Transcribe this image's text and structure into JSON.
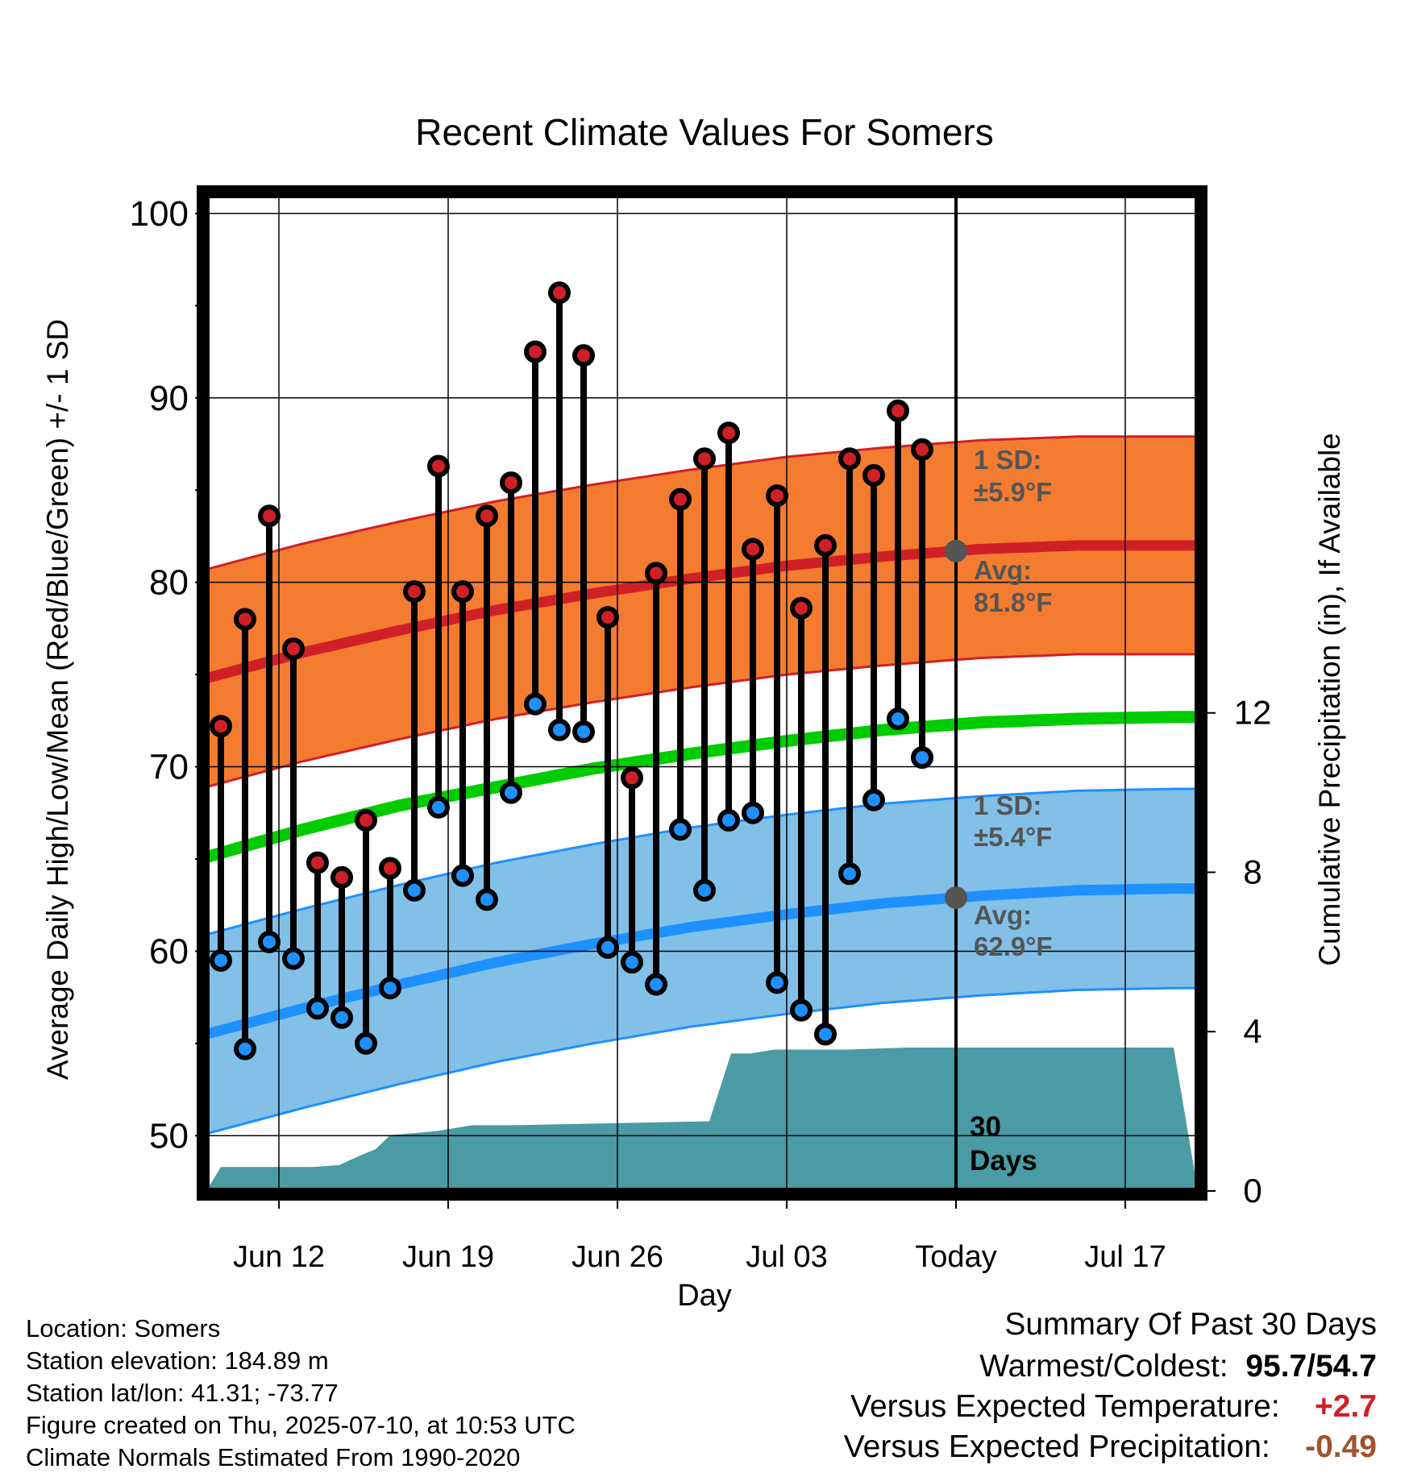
{
  "chart_data": {
    "type": "line",
    "title": "Recent Climate Values For Somers",
    "xlabel": "Day",
    "ylabel": "Average Daily High/Low/Mean (Red/Blue/Green) +/- 1 SD",
    "y2label": "Cumulative Precipitation (in), If Available",
    "x_ticks": [
      "Jun 12",
      "Jun 19",
      "Jun 26",
      "Jul 03",
      "Today",
      "Jul 17"
    ],
    "ylim": [
      47,
      101
    ],
    "y_ticks": [
      50,
      60,
      70,
      80,
      90,
      100
    ],
    "y2lim": [
      0,
      25
    ],
    "y2_ticks": [
      0,
      4,
      8,
      12
    ],
    "grid": true,
    "today_label": "30 Days",
    "high_band": {
      "sd_label": "1 SD:",
      "sd_value": "±5.9°F",
      "avg_label": "Avg:",
      "avg_value": "81.8°F"
    },
    "low_band": {
      "sd_label": "1 SD:",
      "sd_value": "±5.4°F",
      "avg_label": "Avg:",
      "avg_value": "62.9°F"
    },
    "daily": {
      "days": [
        "Jun 10",
        "Jun 11",
        "Jun 12",
        "Jun 13",
        "Jun 14",
        "Jun 15",
        "Jun 16",
        "Jun 17",
        "Jun 18",
        "Jun 19",
        "Jun 20",
        "Jun 21",
        "Jun 22",
        "Jun 23",
        "Jun 24",
        "Jun 25",
        "Jun 26",
        "Jun 27",
        "Jun 28",
        "Jun 29",
        "Jun 30",
        "Jul 01",
        "Jul 02",
        "Jul 03",
        "Jul 04",
        "Jul 05",
        "Jul 06",
        "Jul 07",
        "Jul 08",
        "Jul 09"
      ],
      "highs": [
        72.2,
        78.0,
        83.6,
        76.4,
        64.8,
        64.0,
        67.1,
        64.5,
        79.5,
        86.3,
        79.5,
        83.6,
        85.4,
        92.5,
        95.7,
        92.3,
        78.1,
        69.4,
        80.5,
        84.5,
        86.7,
        88.1,
        81.8,
        84.7,
        78.6,
        82.0,
        86.7,
        85.8,
        89.3,
        87.2
      ],
      "lows": [
        59.5,
        54.7,
        60.5,
        59.6,
        56.9,
        56.4,
        55.0,
        58.0,
        63.3,
        67.8,
        64.1,
        62.8,
        68.6,
        73.4,
        72.0,
        71.9,
        60.2,
        59.4,
        58.2,
        66.6,
        63.3,
        67.1,
        67.5,
        58.3,
        56.8,
        55.5,
        64.2,
        68.2,
        72.6,
        70.5
      ]
    },
    "normals": {
      "x_days": [
        0,
        4,
        8,
        12,
        16,
        20,
        24,
        28,
        32,
        36,
        40
      ],
      "avg_high": [
        74.8,
        76.2,
        77.4,
        78.5,
        79.4,
        80.2,
        80.9,
        81.4,
        81.8,
        82.0,
        82.0
      ],
      "avg_low": [
        55.5,
        56.9,
        58.2,
        59.4,
        60.4,
        61.3,
        62.0,
        62.6,
        63.0,
        63.3,
        63.4
      ],
      "avg_mean": [
        65.1,
        66.6,
        67.9,
        68.9,
        69.9,
        70.7,
        71.4,
        72.0,
        72.4,
        72.6,
        72.7
      ],
      "high_sd": 5.9,
      "low_sd": 5.4
    },
    "precip_cumulative": {
      "x": [
        0,
        0.6,
        4.4,
        5.5,
        6.4,
        7.0,
        7.6,
        9.5,
        11.0,
        12.7,
        20.8,
        21.7,
        22.5,
        23.5,
        26.5,
        29.0,
        40
      ],
      "values": [
        0,
        0.6,
        0.6,
        0.65,
        0.9,
        1.05,
        1.4,
        1.5,
        1.65,
        1.65,
        1.75,
        3.45,
        3.45,
        3.55,
        3.55,
        3.6,
        3.6
      ]
    }
  },
  "footer": {
    "location": "Location: Somers",
    "elevation": "Station elevation: 184.89 m",
    "latlon": "Station lat/lon: 41.31; -73.77",
    "created": "Figure created on Thu, 2025-07-10, at 10:53 UTC",
    "normals": "Climate Normals Estimated From 1990-2020"
  },
  "summary": {
    "title": "Summary Of Past 30 Days",
    "warm_cold_label": "Warmest/Coldest:",
    "warmest": "95.7",
    "coldest": "54.7",
    "temp_label": "Versus Expected Temperature:",
    "temp_value": "+2.7",
    "precip_label": "Versus Expected Precipitation:",
    "precip_value": "-0.49"
  },
  "colors": {
    "high_band": "#f47c30",
    "high_line": "#d02027",
    "low_band": "#82c0e8",
    "low_line": "#1e90ff",
    "mean_line": "#00cc00",
    "precip": "#4a9ba5",
    "high_dot": "#d02027",
    "low_dot": "#1e90ff",
    "annot": "#555555",
    "temp_value": "#d02027",
    "precip_value": "#a0522d"
  }
}
